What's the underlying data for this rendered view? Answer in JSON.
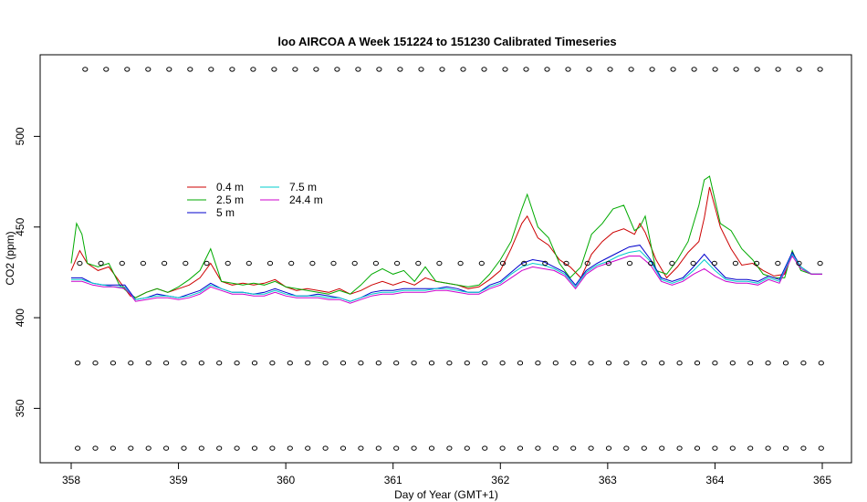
{
  "chart_data": {
    "type": "line",
    "title": "loo AIRCOA A  Week 151224 to 151230  Calibrated Timeseries",
    "xlabel": "Day of Year (GMT+1)",
    "ylabel": "CO2 (ppm)",
    "xlim": [
      358,
      365
    ],
    "ylim": [
      320,
      545
    ],
    "x_ticks": [
      358,
      359,
      360,
      361,
      362,
      363,
      364,
      365
    ],
    "y_ticks": [
      350,
      400,
      450,
      500
    ],
    "grid": false,
    "legend_position": "upper-left",
    "legend": [
      "0.4 m",
      "2.5 m",
      "5 m",
      "7.5 m",
      "24.4 m"
    ],
    "series": [
      {
        "name": "0.4 m",
        "color": "#cc0000",
        "x": [
          358.0,
          358.08,
          358.15,
          358.25,
          358.35,
          358.45,
          358.55,
          358.6,
          358.7,
          358.8,
          358.9,
          359.0,
          359.1,
          359.2,
          359.3,
          359.4,
          359.5,
          359.6,
          359.7,
          359.8,
          359.9,
          360.0,
          360.1,
          360.2,
          360.3,
          360.4,
          360.5,
          360.6,
          360.7,
          360.8,
          360.9,
          361.0,
          361.1,
          361.2,
          361.3,
          361.4,
          361.5,
          361.6,
          361.7,
          361.8,
          361.9,
          362.0,
          362.1,
          362.2,
          362.25,
          362.35,
          362.45,
          362.55,
          362.65,
          362.75,
          362.85,
          362.95,
          363.05,
          363.15,
          363.25,
          363.3,
          363.35,
          363.45,
          363.55,
          363.65,
          363.75,
          363.85,
          363.9,
          363.95,
          364.05,
          364.15,
          364.25,
          364.35,
          364.45,
          364.55,
          364.65,
          364.72,
          364.8,
          364.9,
          365.0
        ],
        "y": [
          426,
          437,
          430,
          426,
          428,
          420,
          412,
          411,
          414,
          416,
          414,
          416,
          418,
          422,
          430,
          420,
          418,
          419,
          418,
          419,
          421,
          417,
          415,
          416,
          415,
          414,
          416,
          413,
          415,
          418,
          420,
          418,
          420,
          418,
          422,
          420,
          419,
          418,
          416,
          417,
          421,
          426,
          438,
          452,
          456,
          444,
          440,
          432,
          428,
          422,
          435,
          442,
          447,
          449,
          446,
          452,
          447,
          432,
          422,
          428,
          436,
          442,
          455,
          472,
          450,
          438,
          429,
          430,
          426,
          423,
          424,
          436,
          428,
          424,
          424
        ]
      },
      {
        "name": "2.5 m",
        "color": "#00aa00",
        "x": [
          358.0,
          358.05,
          358.1,
          358.15,
          358.25,
          358.35,
          358.45,
          358.55,
          358.6,
          358.7,
          358.8,
          358.9,
          359.0,
          359.1,
          359.2,
          359.3,
          359.4,
          359.5,
          359.6,
          359.7,
          359.8,
          359.9,
          360.0,
          360.1,
          360.2,
          360.3,
          360.4,
          360.5,
          360.6,
          360.7,
          360.8,
          360.9,
          361.0,
          361.1,
          361.2,
          361.3,
          361.4,
          361.5,
          361.6,
          361.7,
          361.8,
          361.9,
          362.0,
          362.1,
          362.2,
          362.25,
          362.35,
          362.45,
          362.55,
          362.65,
          362.75,
          362.85,
          362.95,
          363.05,
          363.15,
          363.25,
          363.3,
          363.35,
          363.45,
          363.55,
          363.65,
          363.75,
          363.85,
          363.9,
          363.95,
          364.05,
          364.15,
          364.25,
          364.35,
          364.45,
          364.55,
          364.65,
          364.72,
          364.8,
          364.9,
          365.0
        ],
        "y": [
          430,
          452,
          446,
          430,
          428,
          430,
          418,
          413,
          411,
          414,
          416,
          414,
          417,
          421,
          426,
          438,
          420,
          419,
          418,
          419,
          418,
          420,
          417,
          416,
          415,
          414,
          413,
          415,
          413,
          418,
          424,
          427,
          424,
          426,
          420,
          428,
          420,
          419,
          418,
          417,
          418,
          424,
          432,
          442,
          460,
          468,
          450,
          444,
          430,
          422,
          428,
          446,
          452,
          460,
          462,
          448,
          450,
          456,
          426,
          424,
          432,
          442,
          462,
          476,
          478,
          452,
          448,
          438,
          432,
          424,
          422,
          422,
          437,
          426,
          424,
          424
        ]
      },
      {
        "name": "5 m",
        "color": "#0000cc",
        "x": [
          358.0,
          358.1,
          358.2,
          358.3,
          358.4,
          358.5,
          358.55,
          358.6,
          358.7,
          358.8,
          358.9,
          359.0,
          359.1,
          359.2,
          359.3,
          359.4,
          359.5,
          359.6,
          359.7,
          359.8,
          359.9,
          360.0,
          360.1,
          360.2,
          360.3,
          360.4,
          360.5,
          360.6,
          360.7,
          360.8,
          360.9,
          361.0,
          361.1,
          361.2,
          361.3,
          361.4,
          361.5,
          361.6,
          361.7,
          361.8,
          361.9,
          362.0,
          362.1,
          362.2,
          362.3,
          362.4,
          362.5,
          362.6,
          362.7,
          362.8,
          362.9,
          363.0,
          363.1,
          363.2,
          363.3,
          363.4,
          363.5,
          363.6,
          363.7,
          363.8,
          363.9,
          364.0,
          364.1,
          364.2,
          364.3,
          364.4,
          364.5,
          364.6,
          364.72,
          364.8,
          364.9,
          365.0
        ],
        "y": [
          422,
          422,
          419,
          418,
          418,
          418,
          414,
          410,
          411,
          413,
          412,
          411,
          413,
          415,
          419,
          416,
          414,
          414,
          413,
          414,
          416,
          414,
          412,
          412,
          413,
          412,
          411,
          409,
          411,
          414,
          415,
          415,
          416,
          416,
          416,
          416,
          417,
          416,
          414,
          414,
          418,
          420,
          425,
          430,
          432,
          431,
          428,
          425,
          418,
          426,
          430,
          433,
          436,
          439,
          440,
          432,
          422,
          420,
          422,
          428,
          435,
          428,
          422,
          421,
          421,
          420,
          423,
          421,
          436,
          428,
          424,
          424
        ]
      },
      {
        "name": "7.5 m",
        "color": "#00cccc",
        "x": [
          358.0,
          358.1,
          358.2,
          358.3,
          358.4,
          358.5,
          358.55,
          358.6,
          358.7,
          358.8,
          358.9,
          359.0,
          359.1,
          359.2,
          359.3,
          359.4,
          359.5,
          359.6,
          359.7,
          359.8,
          359.9,
          360.0,
          360.1,
          360.2,
          360.3,
          360.4,
          360.5,
          360.6,
          360.7,
          360.8,
          360.9,
          361.0,
          361.1,
          361.2,
          361.3,
          361.4,
          361.5,
          361.6,
          361.7,
          361.8,
          361.9,
          362.0,
          362.1,
          362.2,
          362.3,
          362.4,
          362.5,
          362.6,
          362.7,
          362.8,
          362.9,
          363.0,
          363.1,
          363.2,
          363.3,
          363.4,
          363.5,
          363.6,
          363.7,
          363.8,
          363.9,
          364.0,
          364.1,
          364.2,
          364.3,
          364.4,
          364.5,
          364.6,
          364.72,
          364.8,
          364.9,
          365.0
        ],
        "y": [
          421,
          421,
          419,
          418,
          417,
          417,
          413,
          410,
          411,
          412,
          412,
          411,
          412,
          414,
          418,
          416,
          414,
          414,
          413,
          413,
          415,
          413,
          412,
          412,
          412,
          411,
          411,
          409,
          411,
          413,
          414,
          414,
          415,
          415,
          415,
          416,
          416,
          415,
          414,
          414,
          417,
          419,
          424,
          428,
          430,
          429,
          427,
          424,
          417,
          425,
          429,
          431,
          434,
          436,
          437,
          431,
          421,
          419,
          421,
          426,
          432,
          426,
          421,
          420,
          420,
          419,
          422,
          420,
          435,
          428,
          424,
          424
        ]
      },
      {
        "name": "24.4 m",
        "color": "#cc00cc",
        "x": [
          358.0,
          358.1,
          358.2,
          358.3,
          358.4,
          358.5,
          358.55,
          358.6,
          358.7,
          358.8,
          358.9,
          359.0,
          359.1,
          359.2,
          359.3,
          359.4,
          359.5,
          359.6,
          359.7,
          359.8,
          359.9,
          360.0,
          360.1,
          360.2,
          360.3,
          360.4,
          360.5,
          360.6,
          360.7,
          360.8,
          360.9,
          361.0,
          361.1,
          361.2,
          361.3,
          361.4,
          361.5,
          361.6,
          361.7,
          361.8,
          361.9,
          362.0,
          362.1,
          362.2,
          362.3,
          362.4,
          362.5,
          362.6,
          362.7,
          362.8,
          362.9,
          363.0,
          363.1,
          363.2,
          363.3,
          363.4,
          363.5,
          363.6,
          363.7,
          363.8,
          363.9,
          364.0,
          364.1,
          364.2,
          364.3,
          364.4,
          364.5,
          364.6,
          364.72,
          364.8,
          364.9,
          365.0
        ],
        "y": [
          420,
          420,
          418,
          417,
          417,
          416,
          413,
          409,
          410,
          411,
          411,
          410,
          411,
          413,
          417,
          415,
          413,
          413,
          412,
          412,
          414,
          412,
          411,
          411,
          411,
          410,
          410,
          408,
          410,
          412,
          413,
          413,
          414,
          414,
          414,
          415,
          415,
          414,
          413,
          413,
          416,
          418,
          422,
          426,
          428,
          427,
          426,
          423,
          416,
          424,
          428,
          430,
          432,
          434,
          434,
          429,
          420,
          418,
          420,
          424,
          427,
          423,
          420,
          419,
          419,
          418,
          421,
          419,
          434,
          427,
          424,
          424
        ]
      }
    ],
    "markers": [
      {
        "y": 537,
        "x_start": 358.13,
        "x_end": 364.98,
        "count": 36
      },
      {
        "y": 430,
        "x_start": 358.08,
        "x_end": 364.98,
        "count": 36
      },
      {
        "y": 375,
        "x_start": 358.06,
        "x_end": 364.99,
        "count": 43
      },
      {
        "y": 328,
        "x_start": 358.06,
        "x_end": 364.99,
        "count": 43
      }
    ]
  }
}
